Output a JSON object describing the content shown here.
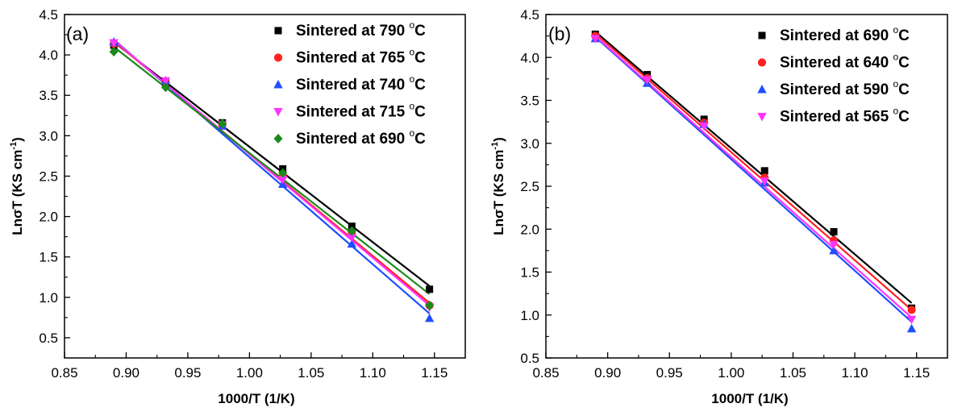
{
  "chart_data": [
    {
      "type": "scatter",
      "panel_label": "(a)",
      "xlabel": "1000/T (1/K)",
      "ylabel": "LnσT (KS cm",
      "ylabel_sup": "-1",
      "ylabel_close": ")",
      "xlim": [
        0.85,
        1.175
      ],
      "ylim": [
        0.25,
        4.5
      ],
      "xticks": [
        "0.85",
        "0.90",
        "0.95",
        "1.00",
        "1.05",
        "1.10",
        "1.15"
      ],
      "yticks": [
        "0.5",
        "1.0",
        "1.5",
        "2.0",
        "2.5",
        "3.0",
        "3.5",
        "4.0",
        "4.5"
      ],
      "legend_position": "top-right",
      "series": [
        {
          "name": "Sintered at 790 °C",
          "label": "Sintered at 790",
          "unit": "C",
          "deg": "o",
          "color": "#000000",
          "marker": "square",
          "x": [
            0.89,
            0.932,
            0.978,
            1.027,
            1.083,
            1.146
          ],
          "y": [
            4.12,
            3.66,
            3.16,
            2.59,
            1.88,
            1.1
          ],
          "fit": [
            [
              0.89,
              4.16
            ],
            [
              1.146,
              1.14
            ]
          ]
        },
        {
          "name": "Sintered at 765 °C",
          "label": "Sintered at 765",
          "unit": "C",
          "deg": "o",
          "color": "#ff2020",
          "marker": "circle",
          "x": [
            0.89,
            0.932,
            0.978,
            1.027,
            1.083,
            1.146
          ],
          "y": [
            4.14,
            3.66,
            3.14,
            2.5,
            1.81,
            0.9
          ],
          "fit": [
            [
              0.89,
              4.17
            ],
            [
              1.146,
              0.93
            ]
          ]
        },
        {
          "name": "Sintered at 740 °C",
          "label": "Sintered at 740",
          "unit": "C",
          "deg": "o",
          "color": "#1f4fff",
          "marker": "triangle-up",
          "x": [
            0.89,
            0.932,
            0.978,
            1.027,
            1.083,
            1.146
          ],
          "y": [
            4.16,
            3.68,
            3.12,
            2.4,
            1.66,
            0.74
          ],
          "fit": [
            [
              0.89,
              4.19
            ],
            [
              1.146,
              0.8
            ]
          ]
        },
        {
          "name": "Sintered at 715 °C",
          "label": "Sintered at 715",
          "unit": "C",
          "deg": "o",
          "color": "#ff33ff",
          "marker": "triangle-down",
          "x": [
            0.89,
            0.932,
            0.978,
            1.027,
            1.083,
            1.146
          ],
          "y": [
            4.15,
            3.68,
            3.14,
            2.46,
            1.74,
            0.88
          ],
          "fit": [
            [
              0.89,
              4.18
            ],
            [
              1.146,
              0.9
            ]
          ]
        },
        {
          "name": "Sintered at 690 °C",
          "label": "Sintered at 690",
          "unit": "C",
          "deg": "o",
          "color": "#1a8a1a",
          "marker": "diamond",
          "x": [
            0.89,
            0.932,
            0.978,
            1.027,
            1.083,
            1.146
          ],
          "y": [
            4.04,
            3.6,
            3.15,
            2.54,
            1.82,
            0.9
          ],
          "fit": [
            [
              0.89,
              4.1
            ],
            [
              1.146,
              1.04
            ]
          ]
        }
      ]
    },
    {
      "type": "scatter",
      "panel_label": "(b)",
      "xlabel": "1000/T (1/K)",
      "ylabel": "LnσT (KS cm",
      "ylabel_sup": "-1",
      "ylabel_close": ")",
      "xlim": [
        0.85,
        1.175
      ],
      "ylim": [
        0.5,
        4.5
      ],
      "xticks": [
        "0.85",
        "0.90",
        "0.95",
        "1.00",
        "1.05",
        "1.10",
        "1.15"
      ],
      "yticks": [
        "0.5",
        "1.0",
        "1.5",
        "2.0",
        "2.5",
        "3.0",
        "3.5",
        "4.0",
        "4.5"
      ],
      "legend_position": "top-right",
      "series": [
        {
          "name": "Sintered at 690 °C",
          "label": "Sintered at 690",
          "unit": "C",
          "deg": "o",
          "color": "#000000",
          "marker": "square",
          "x": [
            0.89,
            0.932,
            0.978,
            1.027,
            1.083,
            1.146
          ],
          "y": [
            4.27,
            3.8,
            3.28,
            2.68,
            1.97,
            1.08
          ],
          "fit": [
            [
              0.89,
              4.3
            ],
            [
              1.146,
              1.14
            ]
          ]
        },
        {
          "name": "Sintered at 640 °C",
          "label": "Sintered at 640",
          "unit": "C",
          "deg": "o",
          "color": "#ff2020",
          "marker": "circle",
          "x": [
            0.89,
            0.932,
            0.978,
            1.027,
            1.083,
            1.146
          ],
          "y": [
            4.25,
            3.76,
            3.24,
            2.6,
            1.87,
            1.06
          ],
          "fit": [
            [
              0.89,
              4.28
            ],
            [
              1.146,
              1.06
            ]
          ]
        },
        {
          "name": "Sintered at 590 °C",
          "label": "Sintered at 590",
          "unit": "C",
          "deg": "o",
          "color": "#1f4fff",
          "marker": "triangle-up",
          "x": [
            0.89,
            0.932,
            0.978,
            1.027,
            1.083,
            1.146
          ],
          "y": [
            4.22,
            3.7,
            3.22,
            2.54,
            1.75,
            0.84
          ],
          "fit": [
            [
              0.89,
              4.24
            ],
            [
              1.146,
              0.92
            ]
          ]
        },
        {
          "name": "Sintered at 565 °C",
          "label": "Sintered at 565",
          "unit": "C",
          "deg": "o",
          "color": "#ff33ff",
          "marker": "triangle-down",
          "x": [
            0.89,
            0.932,
            0.978,
            1.027,
            1.083,
            1.146
          ],
          "y": [
            4.22,
            3.74,
            3.2,
            2.56,
            1.82,
            0.95
          ],
          "fit": [
            [
              0.89,
              4.25
            ],
            [
              1.146,
              0.97
            ]
          ]
        }
      ]
    }
  ]
}
